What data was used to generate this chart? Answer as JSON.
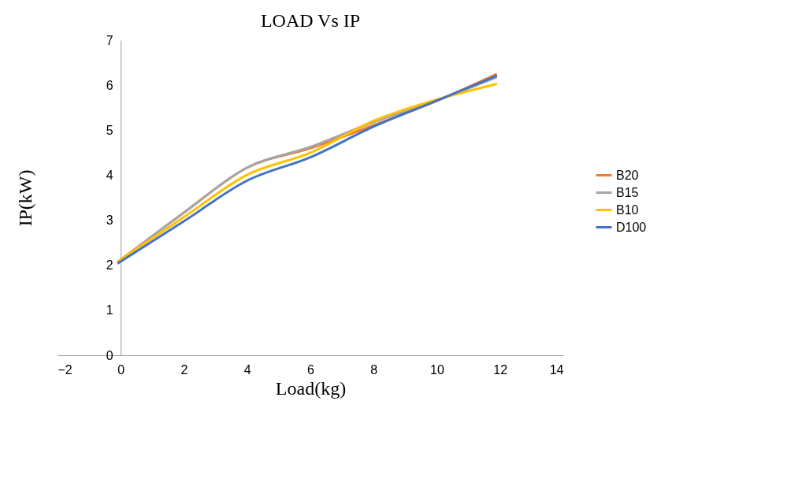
{
  "chart_data": {
    "type": "line",
    "title": "LOAD Vs IP",
    "xlabel": "Load(kg)",
    "ylabel": "IP(kW)",
    "x": [
      -0.1,
      2,
      4,
      6,
      8,
      10,
      11.9
    ],
    "series": [
      {
        "name": "B20",
        "color": "#ed7d31",
        "values": [
          2.07,
          3.17,
          4.17,
          4.6,
          5.11,
          5.65,
          6.25
        ]
      },
      {
        "name": "B15",
        "color": "#a5a5a5",
        "values": [
          2.07,
          3.17,
          4.17,
          4.63,
          5.18,
          5.66,
          6.18
        ]
      },
      {
        "name": "B10",
        "color": "#ffc000",
        "values": [
          2.08,
          3.07,
          4.01,
          4.5,
          5.21,
          5.68,
          6.03
        ]
      },
      {
        "name": "D100",
        "color": "#4472c4",
        "values": [
          2.04,
          2.98,
          3.88,
          4.4,
          5.08,
          5.66,
          6.21
        ]
      }
    ],
    "xlim": [
      -2,
      14
    ],
    "xticks": [
      -2,
      0,
      2,
      4,
      6,
      8,
      10,
      12,
      14
    ],
    "ylim": [
      0,
      7
    ],
    "yticks": [
      0,
      1,
      2,
      3,
      4,
      5,
      6,
      7
    ],
    "grid": false,
    "legend": "right",
    "marker": "none",
    "line_style": "solid"
  }
}
